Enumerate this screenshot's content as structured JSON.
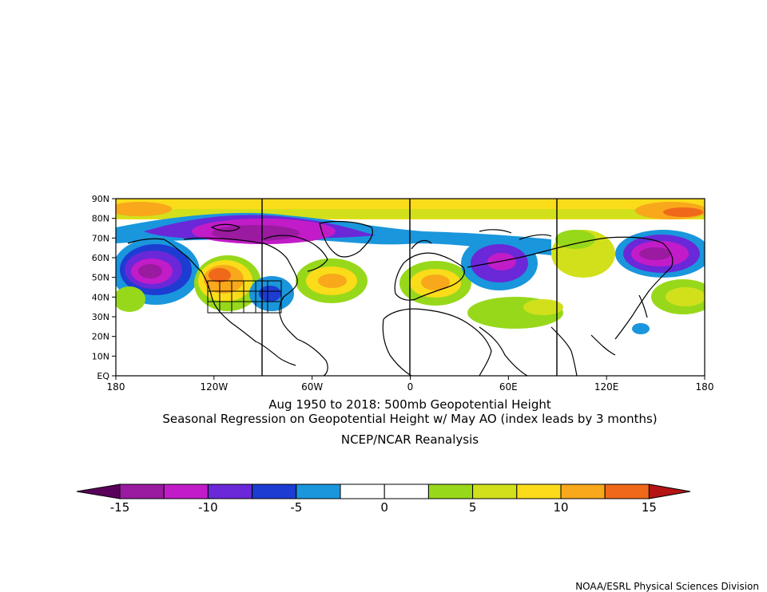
{
  "map": {
    "lat_labels": [
      "90N",
      "80N",
      "70N",
      "60N",
      "50N",
      "40N",
      "30N",
      "20N",
      "10N",
      "EQ"
    ],
    "lon_labels": [
      "180",
      "120W",
      "60W",
      "0",
      "60E",
      "120E",
      "180"
    ]
  },
  "title": {
    "line1": "Aug 1950 to 2018: 500mb Geopotential Height",
    "line2": "Seasonal Regression on Geopotential Height  w/ May AO (index leads by 3 months)",
    "line3": "NCEP/NCAR Reanalysis"
  },
  "colorbar": {
    "tick_labels": [
      "-15",
      "-10",
      "-5",
      "0",
      "5",
      "10",
      "15"
    ],
    "colors": [
      "#5a005a",
      "#9a1aa0",
      "#c21cc8",
      "#6a28d8",
      "#1c3cd2",
      "#1a96dc",
      "#ffffff",
      "#ffffff",
      "#98d81a",
      "#d2e01c",
      "#fadc1a",
      "#f8a81a",
      "#f0681a",
      "#b41414"
    ]
  },
  "credit": "NOAA/ESRL Physical Sciences Division"
}
